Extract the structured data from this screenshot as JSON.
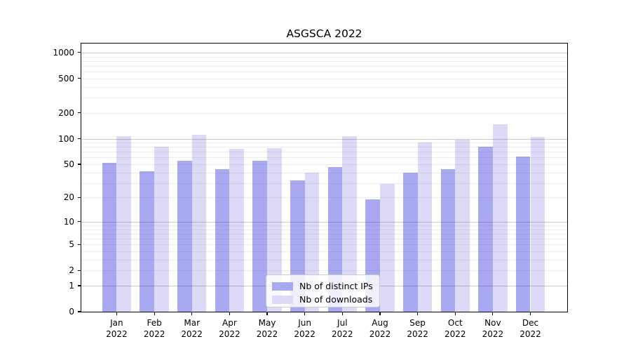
{
  "title": "ASGSCA 2022",
  "colors": {
    "ips_bar": "#a9a9f1",
    "downloads_bar": "#dcdaf7",
    "major_grid": "#cdcdcd",
    "minor_grid": "#ececec",
    "axis": "#000000"
  },
  "legend": {
    "items": [
      {
        "label": "Nb of distinct IPs",
        "series": "ips"
      },
      {
        "label": "Nb of downloads",
        "series": "downloads"
      }
    ]
  },
  "y_axis": {
    "ticks": [
      {
        "value": 1000,
        "label": "1000"
      },
      {
        "value": 500,
        "label": "500"
      },
      {
        "value": 200,
        "label": "200"
      },
      {
        "value": 100,
        "label": "100"
      },
      {
        "value": 50,
        "label": "50"
      },
      {
        "value": 20,
        "label": "20"
      },
      {
        "value": 10,
        "label": "10"
      },
      {
        "value": 5,
        "label": "5"
      },
      {
        "value": 2,
        "label": "2"
      },
      {
        "value": 1,
        "label": "1"
      },
      {
        "value": 0,
        "label": "0"
      }
    ],
    "major_gridline_values": [
      1,
      10,
      100,
      1000
    ],
    "minor_gridline_values": [
      2,
      3,
      4,
      5,
      6,
      7,
      8,
      9,
      20,
      30,
      40,
      50,
      60,
      70,
      80,
      90,
      200,
      300,
      400,
      500,
      600,
      700,
      800,
      900
    ]
  },
  "x_axis": {
    "months": [
      {
        "month": "Jan",
        "year": "2022"
      },
      {
        "month": "Feb",
        "year": "2022"
      },
      {
        "month": "Mar",
        "year": "2022"
      },
      {
        "month": "Apr",
        "year": "2022"
      },
      {
        "month": "May",
        "year": "2022"
      },
      {
        "month": "Jun",
        "year": "2022"
      },
      {
        "month": "Jul",
        "year": "2022"
      },
      {
        "month": "Aug",
        "year": "2022"
      },
      {
        "month": "Sep",
        "year": "2022"
      },
      {
        "month": "Oct",
        "year": "2022"
      },
      {
        "month": "Nov",
        "year": "2022"
      },
      {
        "month": "Dec",
        "year": "2022"
      }
    ]
  },
  "chart_data": {
    "type": "bar",
    "title": "ASGSCA 2022",
    "xlabel": "",
    "ylabel": "",
    "scale": "log10(1 + value)",
    "ylim": [
      0,
      1260
    ],
    "yticks": [
      0,
      1,
      2,
      5,
      10,
      20,
      50,
      100,
      200,
      500,
      1000
    ],
    "grid": "major gridlines at 1,10,100,1000; faint log minor gridlines",
    "legend_position": "inside bottom-center",
    "categories": [
      "Jan 2022",
      "Feb 2022",
      "Mar 2022",
      "Apr 2022",
      "May 2022",
      "Jun 2022",
      "Jul 2022",
      "Aug 2022",
      "Sep 2022",
      "Oct 2022",
      "Nov 2022",
      "Dec 2022"
    ],
    "series": [
      {
        "name": "Nb of distinct IPs",
        "values": [
          52,
          41,
          55,
          44,
          55,
          32,
          46,
          19,
          40,
          44,
          80,
          62
        ]
      },
      {
        "name": "Nb of downloads",
        "values": [
          106,
          80,
          112,
          76,
          77,
          40,
          106,
          29,
          90,
          98,
          146,
          104
        ]
      }
    ]
  }
}
